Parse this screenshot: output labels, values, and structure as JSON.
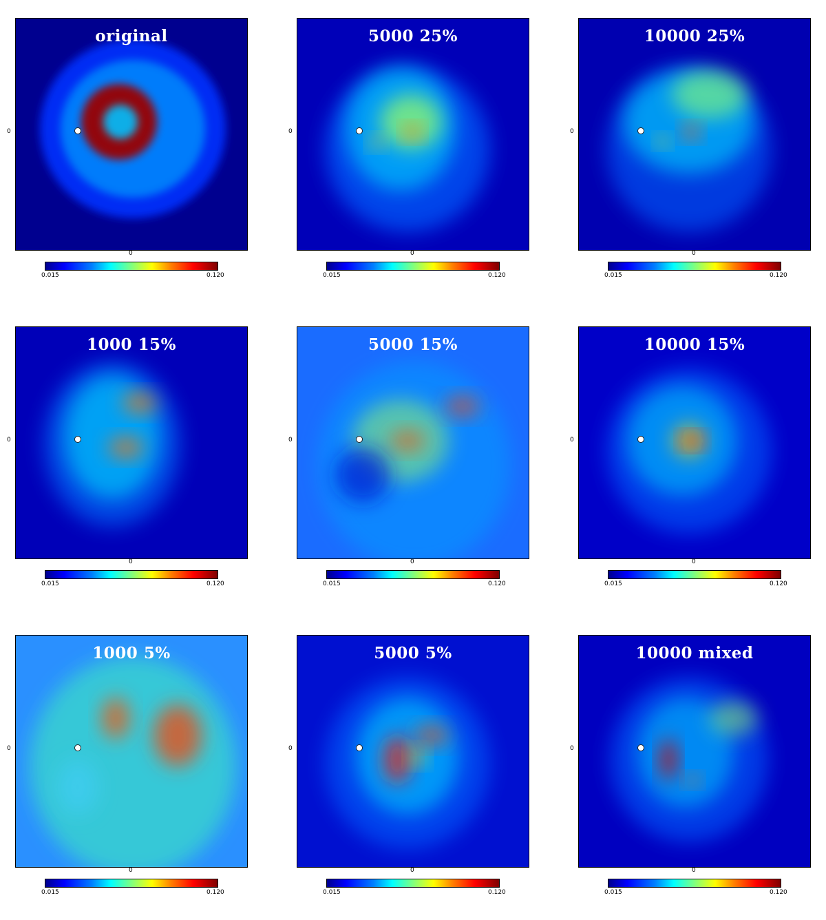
{
  "chart_data": {
    "type": "heatmap",
    "colormap": "jet",
    "colorbar_min_label": "0.015",
    "colorbar_max_label": "0.120",
    "x_tick_label": "0",
    "y_tick_label": "0",
    "panels": [
      {
        "title": "original"
      },
      {
        "title": "5000 25%"
      },
      {
        "title": "10000 25%"
      },
      {
        "title": "1000 15%"
      },
      {
        "title": "5000 15%"
      },
      {
        "title": "10000 15%"
      },
      {
        "title": "1000 5%"
      },
      {
        "title": "5000 5%"
      },
      {
        "title": "10000 mixed"
      }
    ]
  }
}
